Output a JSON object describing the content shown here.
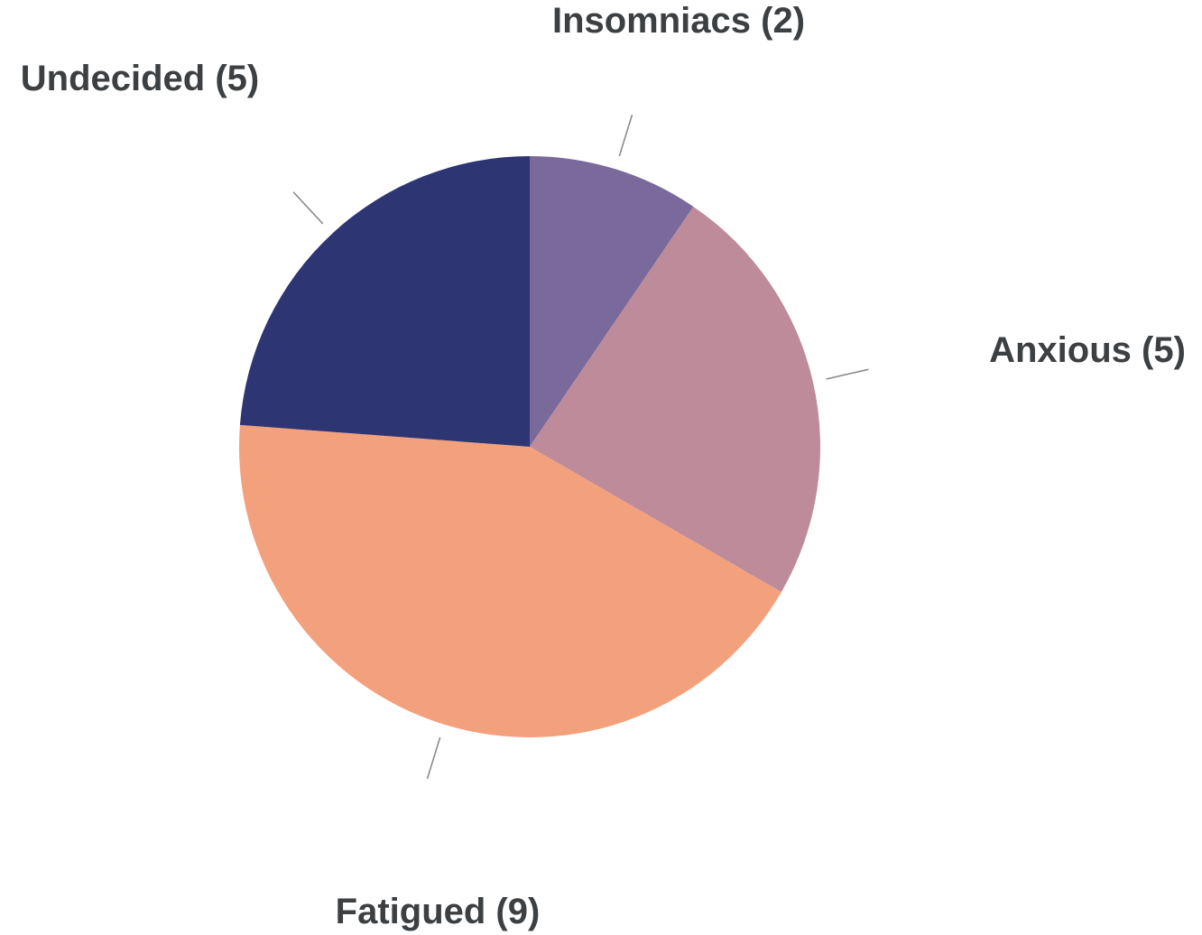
{
  "chart_data": {
    "type": "pie",
    "start_angle_deg": 0,
    "direction": "clockwise",
    "slices": [
      {
        "label": "Insomniacs (2)",
        "value": 2,
        "color": "#7a6a9c"
      },
      {
        "label": "Anxious (5)",
        "value": 5,
        "color": "#bd8b99"
      },
      {
        "label": "Fatigued (9)",
        "value": 9,
        "color": "#f3a07d"
      },
      {
        "label": "Undecided (5)",
        "value": 5,
        "color": "#2e3573"
      }
    ]
  }
}
